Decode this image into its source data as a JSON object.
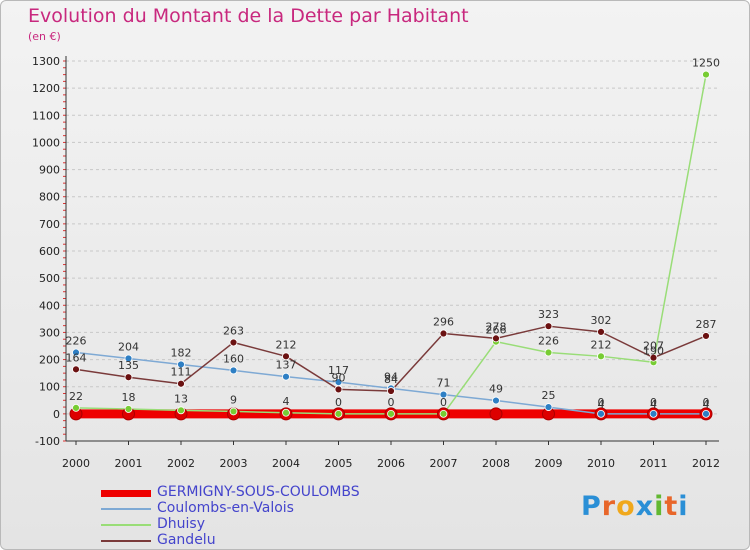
{
  "title": "Evolution du Montant de la Dette par Habitant",
  "subtitle": "(en €)",
  "logo": {
    "text": "Proxiti",
    "colors": [
      "#2a8fd6",
      "#e8662a",
      "#f0a81c",
      "#2a8fd6",
      "#62b832",
      "#e8662a",
      "#2a8fd6"
    ]
  },
  "chart_data": {
    "type": "line",
    "title": "Evolution du Montant de la Dette par Habitant",
    "subtitle": "(en €)",
    "ylim": [
      -100,
      1300
    ],
    "yticks": [
      -100,
      0,
      100,
      200,
      300,
      400,
      500,
      600,
      700,
      800,
      900,
      1000,
      1100,
      1200,
      1300
    ],
    "x": [
      "2000",
      "2001",
      "2002",
      "2003",
      "2004",
      "2005",
      "2006",
      "2007",
      "2008",
      "2009",
      "2010",
      "2011",
      "2012"
    ],
    "grid": "horizontal dashed",
    "legend_position": "bottom-left",
    "series": [
      {
        "name": "GERMIGNY-SOUS-COULOMBS",
        "color": "#ee0000",
        "marker": "#dd0000",
        "values": [
          0,
          0,
          0,
          0,
          0,
          0,
          0,
          0,
          0,
          0,
          0,
          0,
          0
        ]
      },
      {
        "name": "Coulombs-en-Valois",
        "color": "#7ea9d4",
        "marker": "#2e7fc4",
        "values": [
          226,
          204,
          182,
          160,
          137,
          117,
          94,
          71,
          49,
          25,
          0,
          0,
          0
        ]
      },
      {
        "name": "Dhuisy",
        "color": "#99dd77",
        "marker": "#77cc33",
        "values": [
          22,
          18,
          13,
          9,
          4,
          0,
          0,
          0,
          266,
          226,
          212,
          190,
          1250
        ]
      },
      {
        "name": "Gandelu",
        "color": "#7a3a3a",
        "marker": "#6b1111",
        "values": [
          164,
          135,
          111,
          263,
          212,
          90,
          84,
          296,
          278,
          323,
          302,
          207,
          287
        ]
      }
    ],
    "extra_labels": [
      "4",
      "4",
      "4"
    ]
  }
}
